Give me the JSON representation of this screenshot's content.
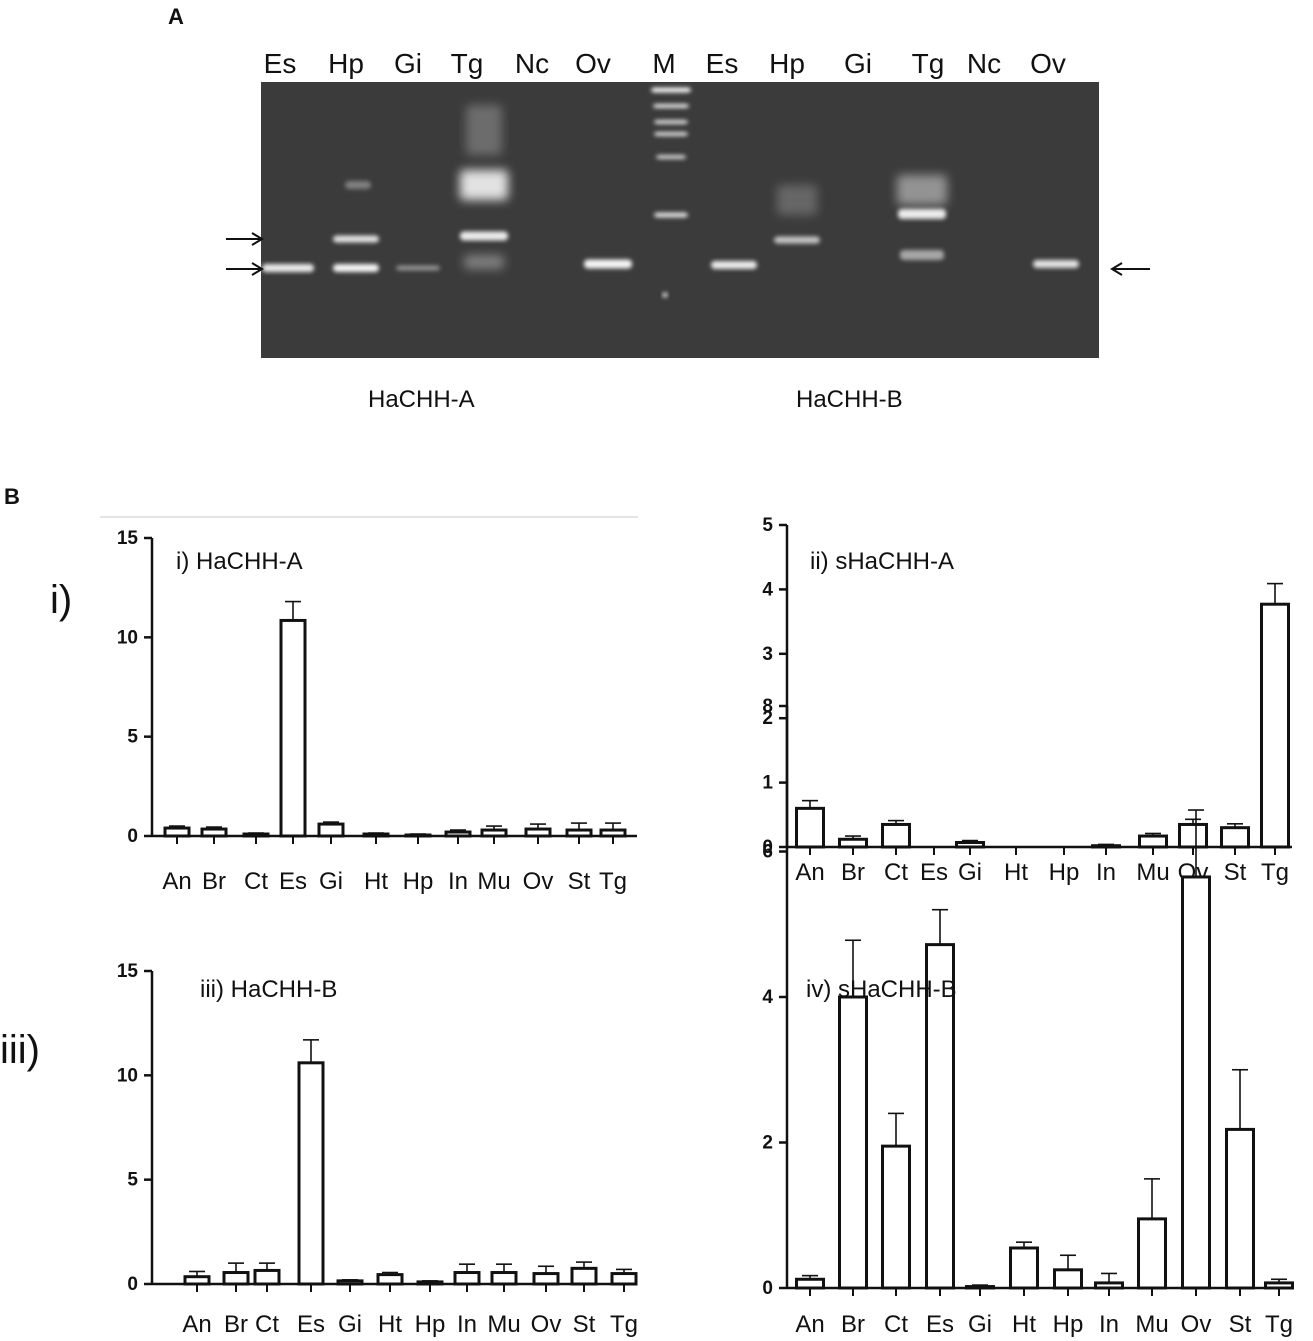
{
  "panel_a": {
    "letter": "A",
    "lanes": [
      "Es",
      "Hp",
      "Gi",
      "Tg",
      "Nc",
      "Ov",
      "M",
      "Es",
      "Hp",
      "Gi",
      "Tg",
      "Nc",
      "Ov"
    ],
    "captions": [
      "HaCHH-A",
      "HaCHH-B"
    ],
    "colors": {
      "gel_bg": "#3a3a3a",
      "band": "#ffffff"
    }
  },
  "panel_b": {
    "letter": "B",
    "row_labels": [
      "i)",
      "iii)"
    ]
  },
  "chart_data": [
    {
      "type": "bar",
      "title": "i)  HaCHH-A",
      "categories": [
        "An",
        "Br",
        "Ct",
        "Es",
        "Gi",
        "Ht",
        "Hp",
        "In",
        "Mu",
        "Ov",
        "St",
        "Tg"
      ],
      "values": [
        0.4,
        0.35,
        0.1,
        10.85,
        0.6,
        0.1,
        0.05,
        0.2,
        0.3,
        0.35,
        0.3,
        0.3
      ],
      "errors": [
        0.1,
        0.1,
        0.05,
        0.95,
        0.1,
        0.05,
        0.05,
        0.1,
        0.2,
        0.25,
        0.35,
        0.35
      ],
      "ylim": [
        0,
        15
      ],
      "yticks": [
        0,
        5,
        10,
        15
      ],
      "xlabel": "",
      "ylabel": ""
    },
    {
      "type": "bar",
      "title": "ii)  sHaCHH-A",
      "categories": [
        "An",
        "Br",
        "Ct",
        "Es",
        "Gi",
        "Ht",
        "Hp",
        "In",
        "Mu",
        "Ov",
        "St",
        "Tg"
      ],
      "values": [
        0.6,
        0.12,
        0.35,
        0.0,
        0.07,
        0.0,
        0.0,
        0.02,
        0.17,
        0.35,
        0.3,
        3.77
      ],
      "errors": [
        0.12,
        0.05,
        0.06,
        0.0,
        0.03,
        0.0,
        0.0,
        0.02,
        0.04,
        0.08,
        0.06,
        0.32
      ],
      "ylim": [
        0,
        5
      ],
      "yticks": [
        0,
        1,
        2,
        3,
        4,
        5
      ],
      "xlabel": "",
      "ylabel": ""
    },
    {
      "type": "bar",
      "title": "iii)  HaCHH-B",
      "categories": [
        "An",
        "Br",
        "Ct",
        "Es",
        "Gi",
        "Ht",
        "Hp",
        "In",
        "Mu",
        "Ov",
        "St",
        "Tg"
      ],
      "values": [
        0.35,
        0.55,
        0.65,
        10.6,
        0.15,
        0.45,
        0.1,
        0.55,
        0.55,
        0.5,
        0.75,
        0.5
      ],
      "errors": [
        0.25,
        0.45,
        0.35,
        1.1,
        0.05,
        0.1,
        0.05,
        0.4,
        0.4,
        0.35,
        0.3,
        0.2
      ],
      "ylim": [
        0,
        15
      ],
      "yticks": [
        0,
        5,
        10,
        15
      ],
      "xlabel": "",
      "ylabel": ""
    },
    {
      "type": "bar",
      "title": "iv)  sHaCHH-B",
      "categories": [
        "An",
        "Br",
        "Ct",
        "Es",
        "Gi",
        "Ht",
        "Hp",
        "In",
        "Mu",
        "Ov",
        "St",
        "Tg"
      ],
      "values": [
        0.12,
        4.0,
        1.95,
        4.72,
        0.02,
        0.55,
        0.25,
        0.07,
        0.95,
        5.65,
        2.18,
        0.07
      ],
      "errors": [
        0.05,
        0.78,
        0.45,
        0.48,
        0.02,
        0.08,
        0.2,
        0.13,
        0.55,
        0.92,
        0.82,
        0.05
      ],
      "ylim": [
        0,
        8
      ],
      "yticks": [
        0,
        2,
        4,
        6,
        8
      ],
      "xlabel": "",
      "ylabel": ""
    }
  ]
}
